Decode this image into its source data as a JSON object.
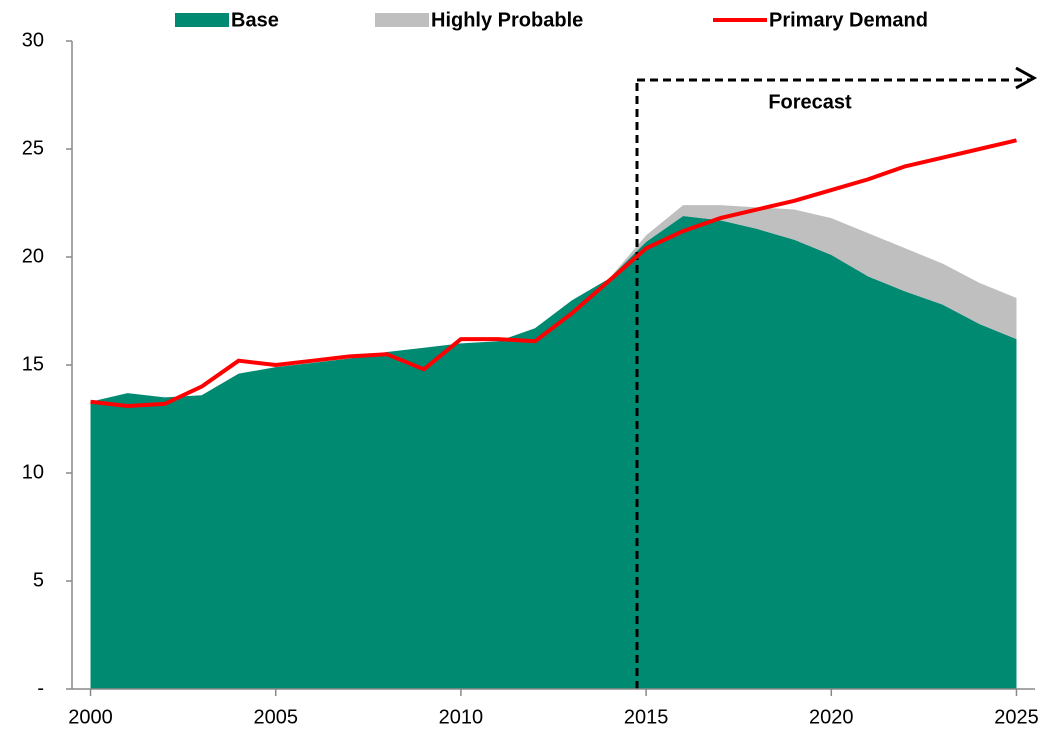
{
  "chart_data": {
    "type": "stacked-area-line",
    "x": [
      2000,
      2001,
      2002,
      2003,
      2004,
      2005,
      2006,
      2007,
      2008,
      2009,
      2010,
      2011,
      2012,
      2013,
      2014,
      2015,
      2016,
      2017,
      2018,
      2019,
      2020,
      2021,
      2022,
      2023,
      2024,
      2025
    ],
    "series": [
      {
        "name": "Base",
        "color": "#008a72",
        "kind": "area",
        "values": [
          13.3,
          13.7,
          13.5,
          13.6,
          14.6,
          14.9,
          15.1,
          15.3,
          15.6,
          15.8,
          16.0,
          16.1,
          16.7,
          18.0,
          19.0,
          20.7,
          21.9,
          21.7,
          21.3,
          20.8,
          20.1,
          19.1,
          18.4,
          17.8,
          16.9,
          16.2
        ]
      },
      {
        "name": "Highly Probable",
        "color": "#bfbfbf",
        "kind": "area",
        "values": [
          0,
          0,
          0,
          0,
          0,
          0,
          0,
          0,
          0,
          0,
          0,
          0,
          0,
          0,
          0,
          0.3,
          0.5,
          0.7,
          1.0,
          1.4,
          1.7,
          2.0,
          2.0,
          1.9,
          1.9,
          1.9
        ]
      },
      {
        "name": "Primary Demand",
        "color": "#ff0000",
        "kind": "line",
        "values": [
          13.3,
          13.1,
          13.2,
          14.0,
          15.2,
          15.0,
          15.2,
          15.4,
          15.5,
          14.8,
          16.2,
          16.2,
          16.1,
          17.4,
          18.9,
          20.4,
          21.2,
          21.8,
          22.2,
          22.6,
          23.1,
          23.6,
          24.2,
          24.6,
          25.0,
          25.4
        ]
      }
    ],
    "xlim": [
      1999.5,
      2025.5
    ],
    "xticks": [
      2000,
      2005,
      2010,
      2015,
      2020,
      2025
    ],
    "ylim": [
      0,
      30
    ],
    "yticks": [
      {
        "value": 0,
        "label": "-"
      },
      5,
      10,
      15,
      20,
      25,
      30
    ],
    "annotation": "Forecast"
  }
}
